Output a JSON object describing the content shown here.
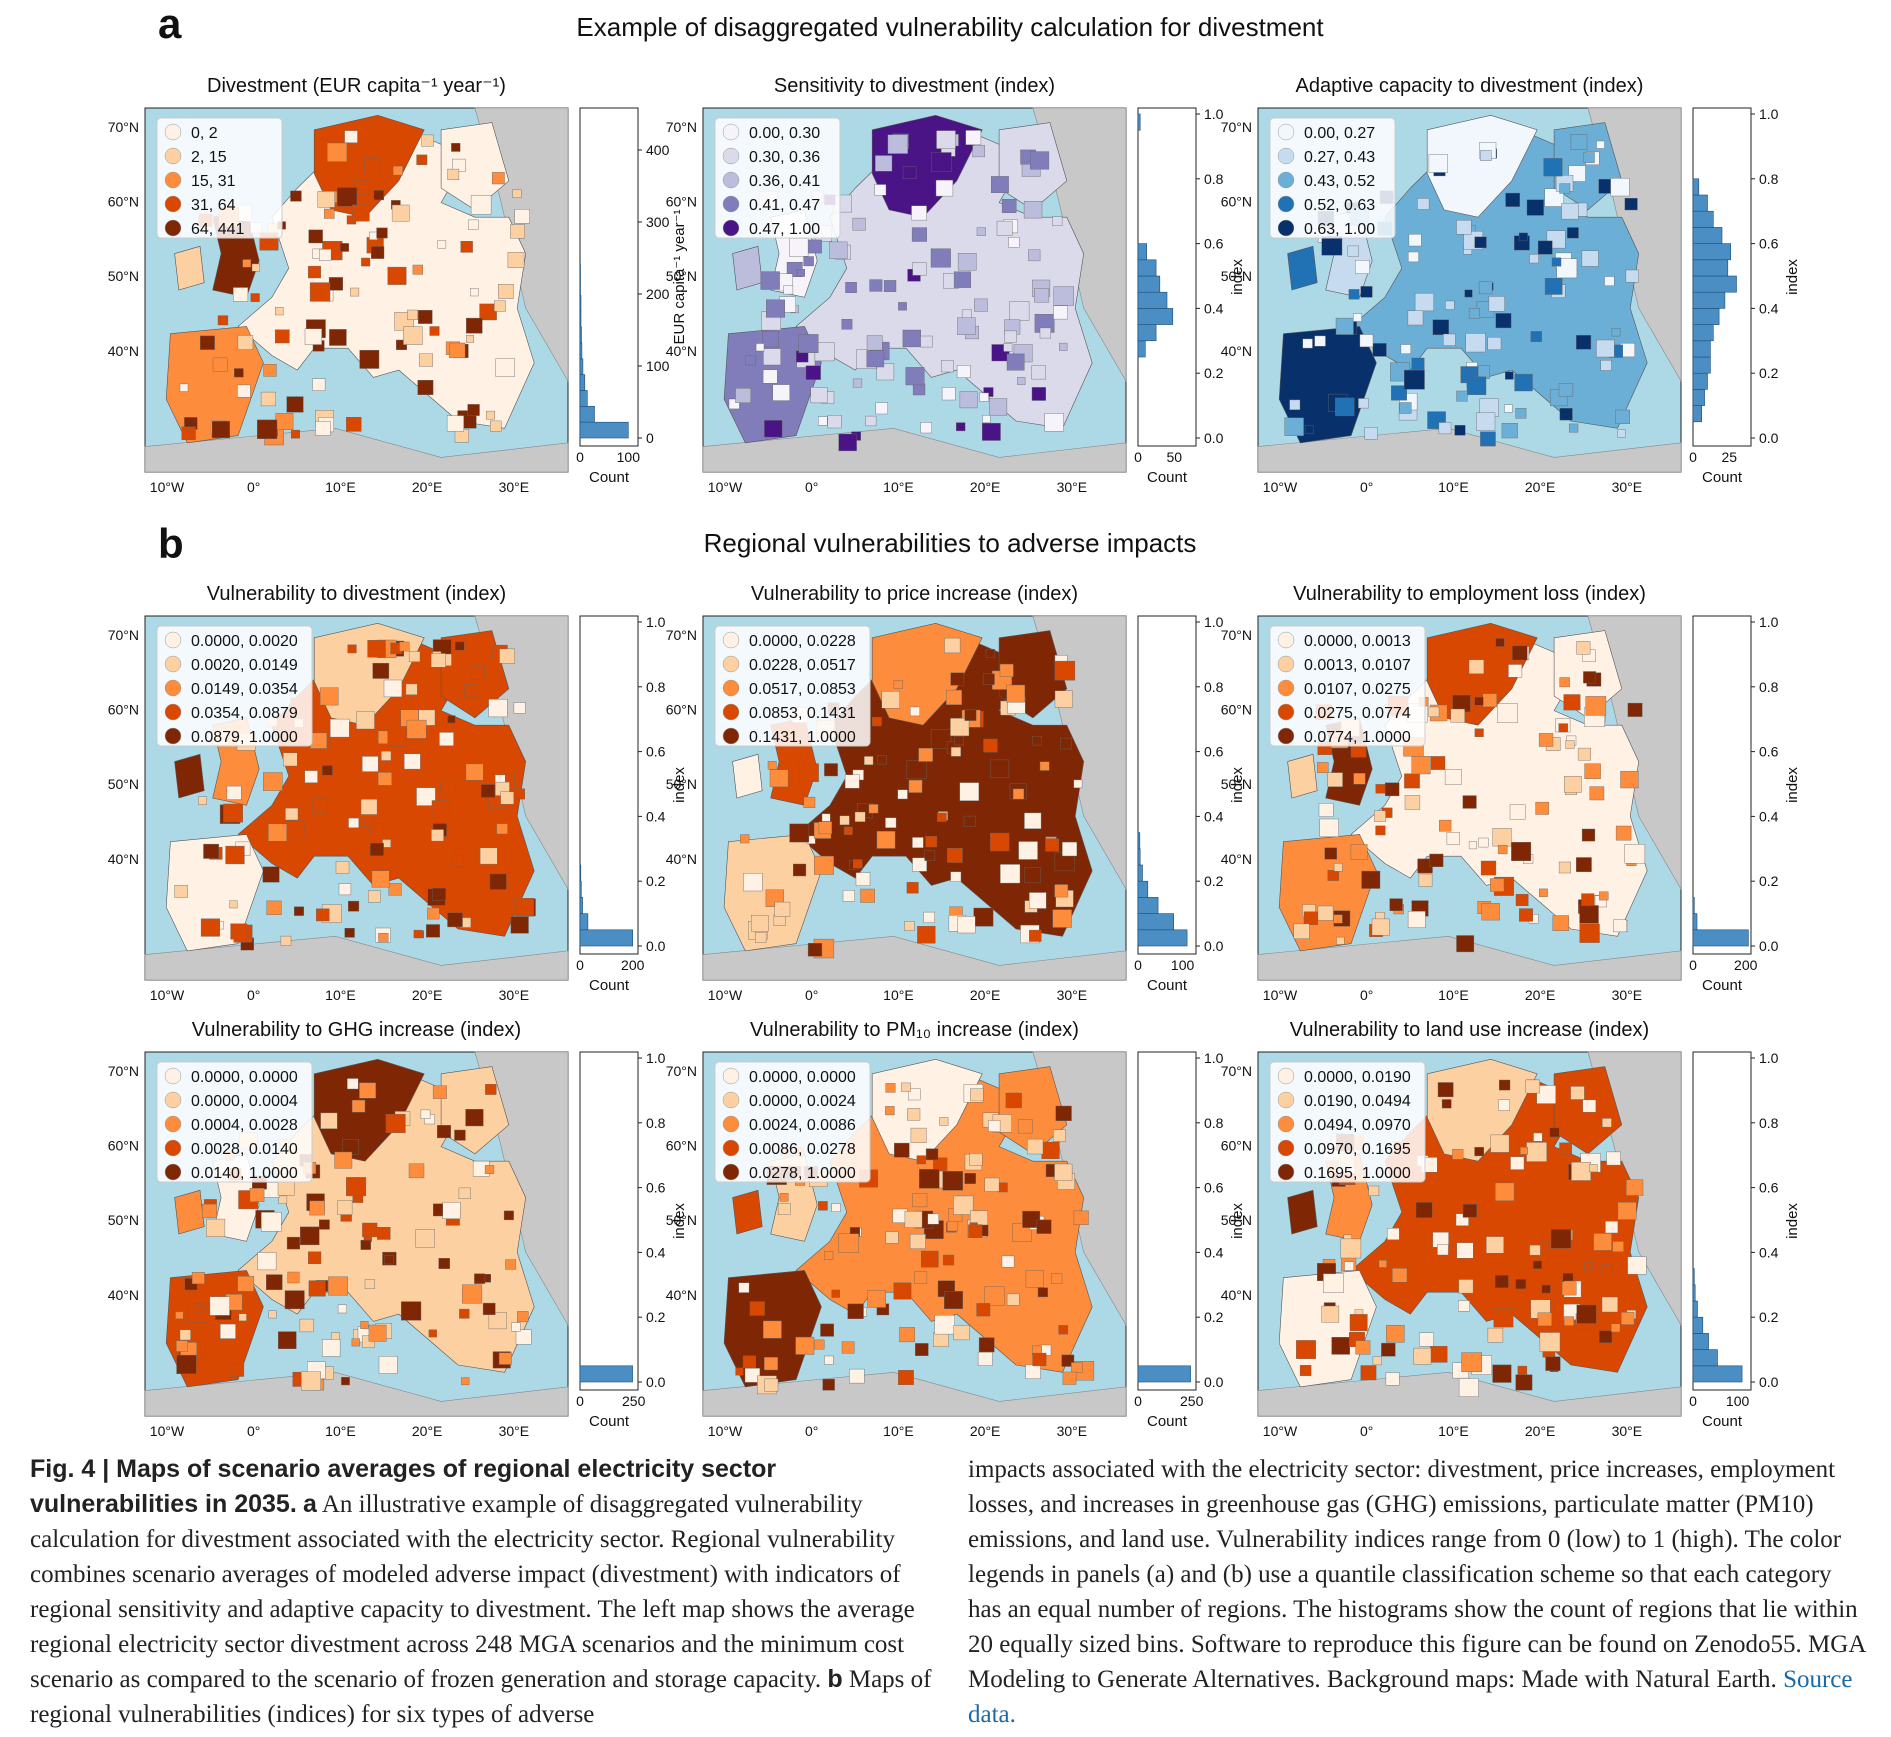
{
  "panel_a": {
    "letter": "a",
    "title": "Example of disaggregated vulnerability calculation for divestment"
  },
  "panel_b": {
    "letter": "b",
    "title": "Regional vulnerabilities to adverse impacts"
  },
  "lat_labels": [
    "70°N",
    "60°N",
    "50°N",
    "40°N"
  ],
  "lon_labels": [
    "10°W",
    "0°",
    "10°E",
    "20°E",
    "30°E"
  ],
  "colors": {
    "ocean": "#add8e6",
    "land_outside": "#c8c8c8",
    "hist_bar": "#4a8ec4",
    "oranges": [
      "#fff1e4",
      "#fdd0a2",
      "#fd8d3c",
      "#d94801",
      "#7f2704"
    ],
    "purples": [
      "#f6f4fa",
      "#dadaeb",
      "#bcbddc",
      "#807dba",
      "#4a1486"
    ],
    "blues": [
      "#f2f7fd",
      "#c6dbef",
      "#6baed6",
      "#2171b5",
      "#08306b"
    ]
  },
  "chart_data": [
    {
      "type": "map",
      "title": "Divestment (EUR capita⁻¹ year⁻¹)",
      "palette": "oranges",
      "legend": [
        "0,  2",
        "2,  15",
        "15,  31",
        "31,  64",
        "64, 441"
      ],
      "hist": {
        "ylabel": "EUR capita⁻¹ year⁻¹",
        "yticks": [
          "0",
          "100",
          "200",
          "300",
          "400"
        ],
        "xticks": [
          "0",
          "100"
        ],
        "xlabel": "Count",
        "ymax": 450,
        "xmax": 120,
        "bins": [
          [
            0,
            22,
            100
          ],
          [
            22,
            44,
            30
          ],
          [
            44,
            66,
            15
          ],
          [
            66,
            88,
            10
          ],
          [
            88,
            110,
            6
          ],
          [
            110,
            132,
            4
          ],
          [
            132,
            154,
            3
          ],
          [
            154,
            176,
            2
          ],
          [
            176,
            198,
            2
          ],
          [
            198,
            220,
            1
          ],
          [
            220,
            242,
            1
          ]
        ]
      }
    },
    {
      "type": "map",
      "title": "Sensitivity to divestment (index)",
      "palette": "purples",
      "legend": [
        "0.00, 0.30",
        "0.30, 0.36",
        "0.36, 0.41",
        "0.41, 0.47",
        "0.47, 1.00"
      ],
      "hist": {
        "ylabel": "index",
        "yticks": [
          "0.0",
          "0.2",
          "0.4",
          "0.6",
          "0.8",
          "1.0"
        ],
        "xticks": [
          "0",
          "50"
        ],
        "xlabel": "Count",
        "ymax": 1.0,
        "xmax": 80,
        "bins": [
          [
            0.25,
            0.3,
            10
          ],
          [
            0.3,
            0.35,
            25
          ],
          [
            0.35,
            0.4,
            48
          ],
          [
            0.4,
            0.45,
            40
          ],
          [
            0.45,
            0.5,
            30
          ],
          [
            0.5,
            0.55,
            25
          ],
          [
            0.55,
            0.6,
            12
          ],
          [
            0.95,
            1.0,
            3
          ]
        ]
      }
    },
    {
      "type": "map",
      "title": "Adaptive capacity to divestment (index)",
      "palette": "blues",
      "legend": [
        "0.00, 0.27",
        "0.27, 0.43",
        "0.43, 0.52",
        "0.52, 0.63",
        "0.63, 1.00"
      ],
      "hist": {
        "ylabel": "index",
        "yticks": [
          "0.0",
          "0.2",
          "0.4",
          "0.6",
          "0.8",
          "1.0"
        ],
        "xticks": [
          "0",
          "25"
        ],
        "xlabel": "Count",
        "ymax": 1.0,
        "xmax": 40,
        "bins": [
          [
            0.05,
            0.1,
            6
          ],
          [
            0.1,
            0.15,
            8
          ],
          [
            0.15,
            0.2,
            10
          ],
          [
            0.2,
            0.25,
            12
          ],
          [
            0.25,
            0.3,
            12
          ],
          [
            0.3,
            0.35,
            14
          ],
          [
            0.35,
            0.4,
            18
          ],
          [
            0.4,
            0.45,
            22
          ],
          [
            0.45,
            0.5,
            30
          ],
          [
            0.5,
            0.55,
            24
          ],
          [
            0.55,
            0.6,
            26
          ],
          [
            0.6,
            0.65,
            20
          ],
          [
            0.65,
            0.7,
            14
          ],
          [
            0.7,
            0.75,
            10
          ],
          [
            0.75,
            0.8,
            4
          ]
        ]
      }
    },
    {
      "type": "map",
      "title": "Vulnerability to divestment (index)",
      "palette": "oranges",
      "legend": [
        "0.0000, 0.0020",
        "0.0020, 0.0149",
        "0.0149, 0.0354",
        "0.0354, 0.0879",
        "0.0879, 1.0000"
      ],
      "hist": {
        "ylabel": "index",
        "yticks": [
          "0.0",
          "0.2",
          "0.4",
          "0.6",
          "0.8",
          "1.0"
        ],
        "xticks": [
          "0",
          "200"
        ],
        "xlabel": "Count",
        "ymax": 1.0,
        "xmax": 220,
        "bins": [
          [
            0,
            0.05,
            200
          ],
          [
            0.05,
            0.1,
            30
          ],
          [
            0.1,
            0.15,
            10
          ],
          [
            0.15,
            0.2,
            5
          ],
          [
            0.2,
            0.25,
            3
          ]
        ]
      }
    },
    {
      "type": "map",
      "title": "Vulnerability to price increase (index)",
      "palette": "oranges",
      "legend": [
        "0.0000, 0.0228",
        "0.0228, 0.0517",
        "0.0517, 0.0853",
        "0.0853, 0.1431",
        "0.1431, 1.0000"
      ],
      "hist": {
        "ylabel": "index",
        "yticks": [
          "0.0",
          "0.2",
          "0.4",
          "0.6",
          "0.8",
          "1.0"
        ],
        "xticks": [
          "0",
          "100"
        ],
        "xlabel": "Count",
        "ymax": 1.0,
        "xmax": 130,
        "bins": [
          [
            0,
            0.05,
            110
          ],
          [
            0.05,
            0.1,
            80
          ],
          [
            0.1,
            0.15,
            45
          ],
          [
            0.15,
            0.2,
            22
          ],
          [
            0.2,
            0.25,
            10
          ],
          [
            0.25,
            0.3,
            5
          ],
          [
            0.3,
            0.35,
            4
          ]
        ]
      }
    },
    {
      "type": "map",
      "title": "Vulnerability to employment loss (index)",
      "palette": "oranges",
      "legend": [
        "0.0000, 0.0013",
        "0.0013, 0.0107",
        "0.0107, 0.0275",
        "0.0275, 0.0774",
        "0.0774, 1.0000"
      ],
      "hist": {
        "ylabel": "index",
        "yticks": [
          "0.0",
          "0.2",
          "0.4",
          "0.6",
          "0.8",
          "1.0"
        ],
        "xticks": [
          "0",
          "200"
        ],
        "xlabel": "Count",
        "ymax": 1.0,
        "xmax": 220,
        "bins": [
          [
            0,
            0.05,
            210
          ],
          [
            0.05,
            0.1,
            15
          ],
          [
            0.1,
            0.15,
            5
          ]
        ]
      }
    },
    {
      "type": "map",
      "title": "Vulnerability to GHG increase (index)",
      "palette": "oranges",
      "legend": [
        "0.0000, 0.0000",
        "0.0000, 0.0004",
        "0.0004, 0.0028",
        "0.0028, 0.0140",
        "0.0140, 1.0000"
      ],
      "hist": {
        "ylabel": "index",
        "yticks": [
          "0.0",
          "0.2",
          "0.4",
          "0.6",
          "0.8",
          "1.0"
        ],
        "xticks": [
          "0",
          "250"
        ],
        "xlabel": "Count",
        "ymax": 1.0,
        "xmax": 270,
        "bins": [
          [
            0,
            0.05,
            245
          ]
        ]
      }
    },
    {
      "type": "map",
      "title": "Vulnerability to PM₁₀ increase (index)",
      "palette": "oranges",
      "legend": [
        "0.0000, 0.0000",
        "0.0000, 0.0024",
        "0.0024, 0.0086",
        "0.0086, 0.0278",
        "0.0278, 1.0000"
      ],
      "hist": {
        "ylabel": "index",
        "yticks": [
          "0.0",
          "0.2",
          "0.4",
          "0.6",
          "0.8",
          "1.0"
        ],
        "xticks": [
          "0",
          "250"
        ],
        "xlabel": "Count",
        "ymax": 1.0,
        "xmax": 270,
        "bins": [
          [
            0,
            0.05,
            245
          ]
        ]
      }
    },
    {
      "type": "map",
      "title": "Vulnerability to land use increase (index)",
      "palette": "oranges",
      "legend": [
        "0.0000, 0.0190",
        "0.0190, 0.0494",
        "0.0494, 0.0970",
        "0.0970, 0.1695",
        "0.1695, 1.0000"
      ],
      "hist": {
        "ylabel": "index",
        "yticks": [
          "0.0",
          "0.2",
          "0.4",
          "0.6",
          "0.8",
          "1.0"
        ],
        "xticks": [
          "0",
          "100"
        ],
        "xlabel": "Count",
        "ymax": 1.0,
        "xmax": 130,
        "bins": [
          [
            0,
            0.05,
            110
          ],
          [
            0.05,
            0.1,
            55
          ],
          [
            0.1,
            0.15,
            35
          ],
          [
            0.15,
            0.2,
            22
          ],
          [
            0.2,
            0.25,
            10
          ],
          [
            0.25,
            0.3,
            5
          ],
          [
            0.3,
            0.35,
            3
          ]
        ]
      }
    }
  ],
  "caption": {
    "fig_label": "Fig. 4 | Maps of scenario averages of regional electricity sector vulnerabilities in 2035.",
    "a_label": "a",
    "a_text": "An illustrative example of disaggregated vulnerability calculation for divestment associated with the electricity sector. Regional vulnerability combines scenario averages of modeled adverse impact (divestment) with indicators of regional sensitivity and adaptive capacity to divestment. The left map shows the average regional electricity sector divestment across 248 MGA scenarios and the minimum cost scenario as compared to the scenario of frozen generation and storage capacity.",
    "b_label": "b",
    "b_text": "Maps of regional vulnerabilities (indices) for six types of adverse",
    "right_text": "impacts associated with the electricity sector: divestment, price increases, employment losses, and increases in greenhouse gas (GHG) emissions, particulate matter (PM10) emissions, and land use. Vulnerability indices range from 0 (low) to 1 (high). The color legends in panels (a) and (b) use a quantile classification scheme so that each category has an equal number of regions. The histograms show the count of regions that lie within 20 equally sized bins. Software to reproduce this figure can be found on Zenodo55. MGA Modeling to Generate Alternatives. Background maps: Made with Natural Earth.",
    "source_link": "Source data."
  }
}
